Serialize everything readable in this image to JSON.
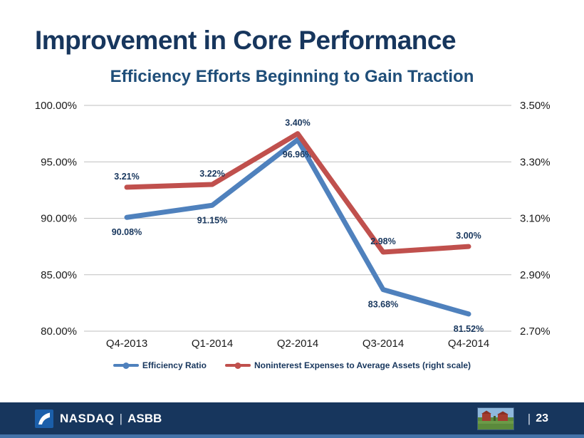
{
  "header": {
    "title": "Improvement in Core Performance",
    "subtitle": "Efficiency Efforts Beginning to Gain Traction"
  },
  "chart_data": {
    "type": "line",
    "title": "Efficiency Efforts Beginning to Gain Traction",
    "categories": [
      "Q4-2013",
      "Q1-2014",
      "Q2-2014",
      "Q3-2014",
      "Q4-2014"
    ],
    "series": [
      {
        "name": "Efficiency Ratio",
        "axis": "left",
        "color": "#4F81BD",
        "values": [
          90.08,
          91.15,
          96.96,
          83.68,
          81.52
        ],
        "labels": [
          "90.08%",
          "91.15%",
          "96.96%",
          "83.68%",
          "81.52%"
        ],
        "label_position": "below"
      },
      {
        "name": "Noninterest Expenses to Average Assets (right scale)",
        "axis": "right",
        "color": "#C0504D",
        "values": [
          3.21,
          3.22,
          3.4,
          2.98,
          3.0
        ],
        "labels": [
          "3.21%",
          "3.22%",
          "3.40%",
          "2.98%",
          "3.00%"
        ],
        "label_position": "above"
      }
    ],
    "left_axis": {
      "min": 80,
      "max": 100,
      "ticks": [
        "100.00%",
        "95.00%",
        "90.00%",
        "85.00%",
        "80.00%"
      ]
    },
    "right_axis": {
      "min": 2.7,
      "max": 3.5,
      "ticks": [
        "3.50%",
        "3.30%",
        "3.10%",
        "2.90%",
        "2.70%"
      ]
    },
    "grid": true,
    "legend_position": "bottom"
  },
  "footer": {
    "brand": "NASDAQ",
    "separator": "|",
    "ticker": "ASBB",
    "page_separator": "|",
    "page_number": "23"
  },
  "colors": {
    "title_text": "#17365D",
    "subtitle_text": "#1F4E79",
    "efficiency_ratio_line": "#4F81BD",
    "noninterest_line": "#C0504D",
    "data_label_text": "#17365D",
    "gridline": "#BFBFBF",
    "footer_bar": "#17365D",
    "footer_accent_strip": "#4472A8",
    "nasdaq_logo_square": "#1B5FAA"
  }
}
